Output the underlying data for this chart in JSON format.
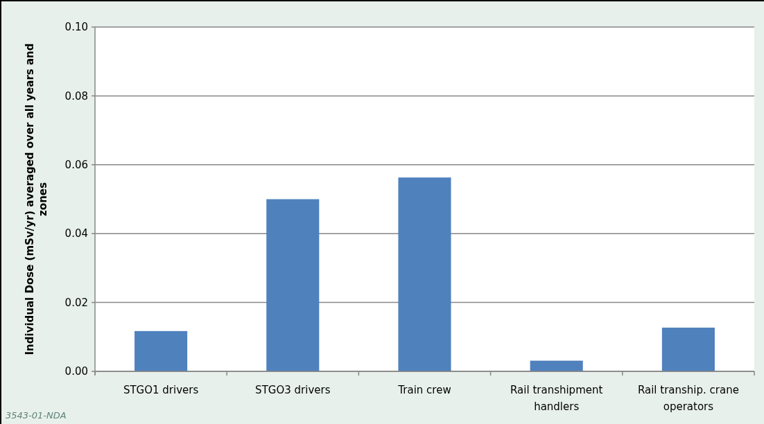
{
  "chart_data": {
    "type": "bar",
    "ylabel": "Individual Dose (mSv/yr) averaged over all years and zones",
    "categories": [
      "STGO1 drivers",
      "STGO3 drivers",
      "Train crew",
      "Rail transhipment handlers",
      "Rail tranship. crane operators"
    ],
    "values": [
      0.0117,
      0.05,
      0.0563,
      0.0031,
      0.0127
    ],
    "color": "#4f81bd",
    "ylim": [
      0,
      0.1
    ],
    "yticks": [
      {
        "value": 0,
        "label": "0.00"
      },
      {
        "value": 0.02,
        "label": "0.02"
      },
      {
        "value": 0.04,
        "label": "0.04"
      },
      {
        "value": 0.06,
        "label": "0.06"
      },
      {
        "value": 0.08,
        "label": "0.08"
      },
      {
        "value": 0.1,
        "label": "0.10"
      }
    ],
    "grid": "y",
    "annotations": [
      "3543-01-NDA"
    ]
  }
}
